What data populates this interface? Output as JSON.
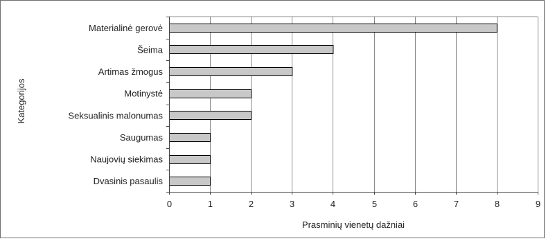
{
  "chart_data": {
    "type": "bar",
    "orientation": "horizontal",
    "categories": [
      "Materialinė gerovė",
      "Šeima",
      "Artimas žmogus",
      "Motinystė",
      "Seksualinis malonumas",
      "Saugumas",
      "Naujovių siekimas",
      "Dvasinis pasaulis"
    ],
    "values": [
      8,
      4,
      3,
      2,
      2,
      1,
      1,
      1
    ],
    "xlabel": "Prasminių vienetų dažniai",
    "ylabel": "Kategorijos",
    "xlim": [
      0,
      9
    ],
    "xticks": [
      "0",
      "1",
      "2",
      "3",
      "4",
      "5",
      "6",
      "7",
      "8",
      "9"
    ],
    "grid": "vertical",
    "legend": "none",
    "bar_color": "#c8c8c8",
    "bar_edge_color": "#000000",
    "grid_color": "#8c8c8c"
  }
}
